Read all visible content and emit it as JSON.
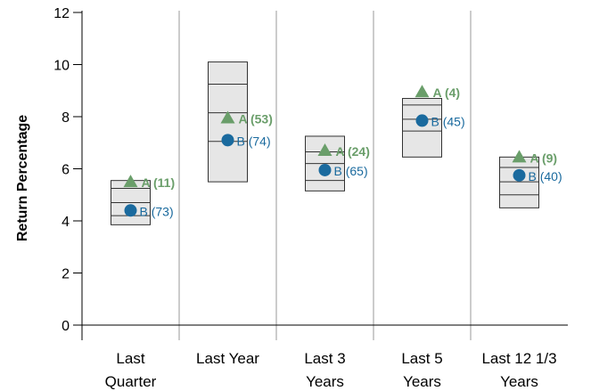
{
  "chart_data": {
    "type": "floating-box-with-markers",
    "ylabel": "Return Percentage",
    "ylim": [
      0,
      12
    ],
    "yticks": [
      "0",
      "2",
      "4",
      "6",
      "8",
      "10",
      "12"
    ],
    "grid": "vertical separators between categories",
    "categories": [
      [
        "Last",
        "Quarter"
      ],
      [
        "Last Year"
      ],
      [
        "Last 3",
        "Years"
      ],
      [
        "Last 5",
        "Years"
      ],
      [
        "Last 12 1/3",
        "Years"
      ]
    ],
    "ranges": [
      {
        "low": 3.85,
        "q1": 4.2,
        "median": 4.7,
        "q3": 5.25,
        "high": 5.55
      },
      {
        "low": 5.5,
        "q1": 7.05,
        "median": 8.15,
        "q3": 9.25,
        "high": 10.1
      },
      {
        "low": 5.15,
        "q1": 5.55,
        "median": 6.2,
        "q3": 6.65,
        "high": 7.25
      },
      {
        "low": 6.45,
        "q1": 7.45,
        "median": 7.9,
        "q3": 8.45,
        "high": 8.7
      },
      {
        "low": 4.5,
        "q1": 5.0,
        "median": 5.5,
        "q3": 6.05,
        "high": 6.45
      }
    ],
    "series": [
      {
        "marker": "triangle",
        "color": "#6a9e6a",
        "values": [
          5.5,
          7.95,
          6.7,
          8.95,
          6.45
        ],
        "labels": [
          "A (11)",
          "A (53)",
          "A (24)",
          "A (4)",
          "A (9)"
        ]
      },
      {
        "marker": "circle",
        "color": "#1a6a9e",
        "values": [
          4.4,
          7.1,
          5.95,
          7.85,
          5.75
        ],
        "labels": [
          "B (73)",
          "B (74)",
          "B (65)",
          "B (45)",
          "B (40)"
        ]
      }
    ],
    "colors": {
      "box_fill": "#e6e6e6",
      "box_stroke": "#333333",
      "separator": "#999999"
    }
  }
}
